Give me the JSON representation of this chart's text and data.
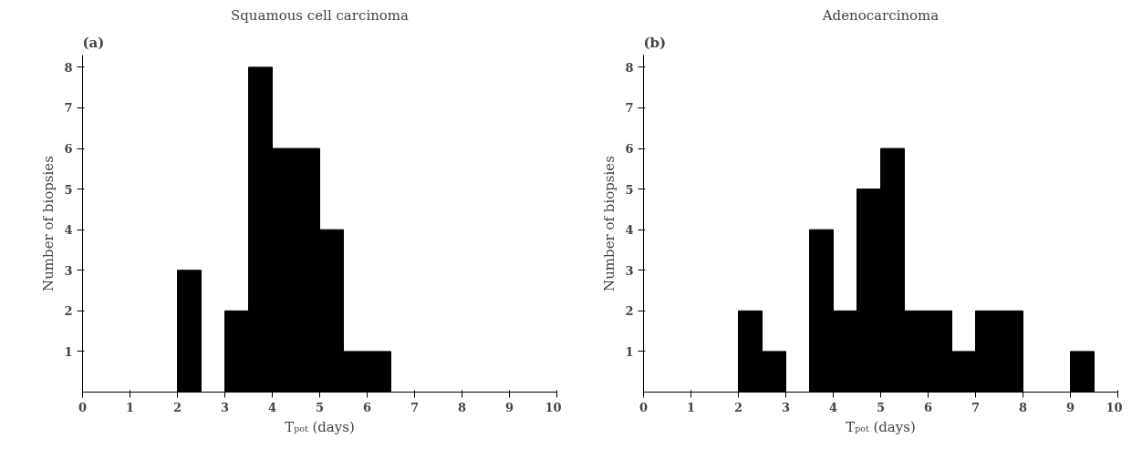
{
  "chart_data": [
    {
      "type": "histogram",
      "title": "Squamous cell carcinoma",
      "annotations": [
        "(a)"
      ],
      "xlabel": "Tₚₒₜ (days)",
      "ylabel": "Number of biopsies",
      "bins": [
        0,
        0.5,
        1,
        1.5,
        2,
        2.5,
        3,
        3.5,
        4,
        4.5,
        5,
        5.5,
        6,
        6.5,
        7,
        7.5,
        8,
        8.5,
        9,
        9.5,
        10
      ],
      "values": [
        0,
        0,
        0,
        0,
        3,
        0,
        2,
        8,
        6,
        6,
        4,
        1,
        1,
        0,
        0,
        0,
        0,
        0,
        0,
        0
      ],
      "color": "#000000",
      "xlim": [
        0,
        10
      ],
      "ylim": [
        0,
        8.3
      ],
      "xticks": [
        0,
        1,
        2,
        3,
        4,
        5,
        6,
        7,
        8,
        9,
        10
      ],
      "yticks": [
        1,
        2,
        3,
        4,
        5,
        6,
        7,
        8
      ],
      "grid": false
    },
    {
      "type": "histogram",
      "title": "Adenocarcinoma",
      "annotations": [
        "(b)"
      ],
      "xlabel": "Tₚₒₜ (days)",
      "ylabel": "Number of biopsies",
      "bins": [
        0,
        0.5,
        1,
        1.5,
        2,
        2.5,
        3,
        3.5,
        4,
        4.5,
        5,
        5.5,
        6,
        6.5,
        7,
        7.5,
        8,
        8.5,
        9,
        9.5,
        10
      ],
      "values": [
        0,
        0,
        0,
        0,
        2,
        1,
        0,
        4,
        2,
        5,
        6,
        2,
        2,
        1,
        2,
        2,
        0,
        0,
        1,
        0
      ],
      "color": "#000000",
      "xlim": [
        0,
        10
      ],
      "ylim": [
        0,
        8.3
      ],
      "xticks": [
        0,
        1,
        2,
        3,
        4,
        5,
        6,
        7,
        8,
        9,
        10
      ],
      "yticks": [
        1,
        2,
        3,
        4,
        5,
        6,
        7,
        8
      ],
      "grid": false
    }
  ]
}
